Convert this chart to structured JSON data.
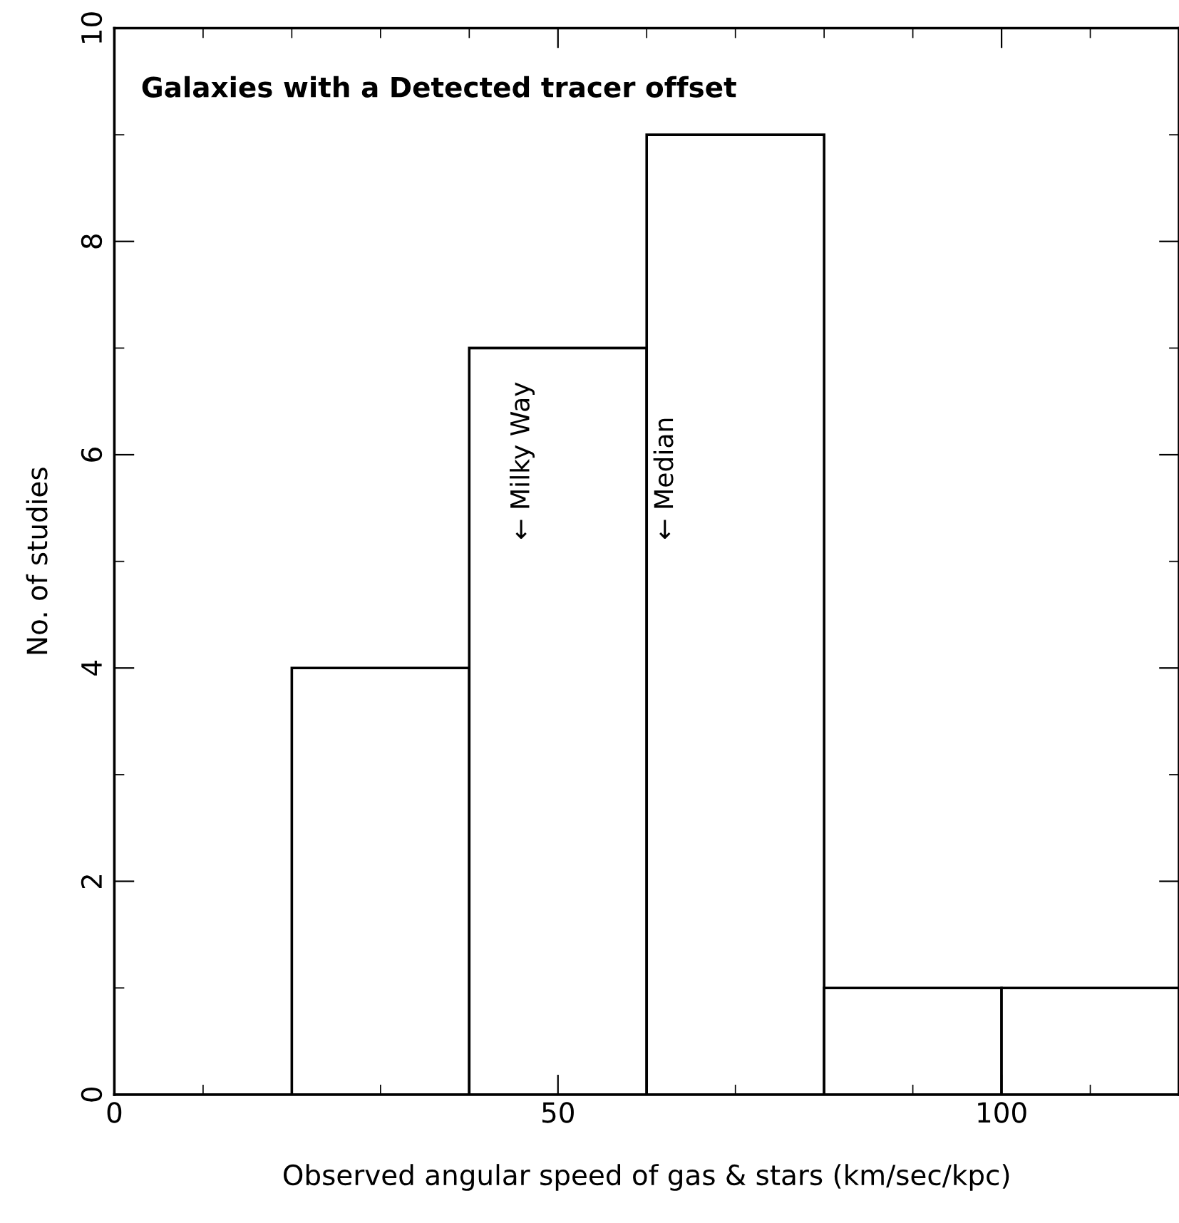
{
  "chart_data": {
    "type": "histogram",
    "title": "Galaxies with a Detected tracer offset",
    "xlabel": "Observed angular speed of gas & stars (km/sec/kpc)",
    "ylabel": "No. of studies",
    "bins": [
      0,
      20,
      40,
      60,
      80,
      100,
      120
    ],
    "values": [
      0,
      4,
      7,
      9,
      1,
      1
    ],
    "color": "#ffffff",
    "xlim": [
      0,
      120
    ],
    "ylim": [
      0,
      10
    ],
    "xticks": [
      0,
      {
        "value": 10,
        "label": null
      },
      {
        "value": 20,
        "label": null
      },
      {
        "value": 30,
        "label": null
      },
      {
        "value": 40,
        "label": null
      },
      50,
      {
        "value": 60,
        "label": null
      },
      {
        "value": 70,
        "label": null
      },
      {
        "value": 80,
        "label": null
      },
      {
        "value": 90,
        "label": null
      },
      100,
      {
        "value": 110,
        "label": null
      }
    ],
    "yticks": [
      0,
      {
        "value": 1,
        "label": null
      },
      2,
      {
        "value": 3,
        "label": null
      },
      4,
      {
        "value": 5,
        "label": null
      },
      6,
      {
        "value": 7,
        "label": null
      },
      8,
      {
        "value": 9,
        "label": null
      },
      10
    ],
    "annotations": [
      "← Milky Way",
      "← Median"
    ],
    "grid": false,
    "legend": false
  }
}
